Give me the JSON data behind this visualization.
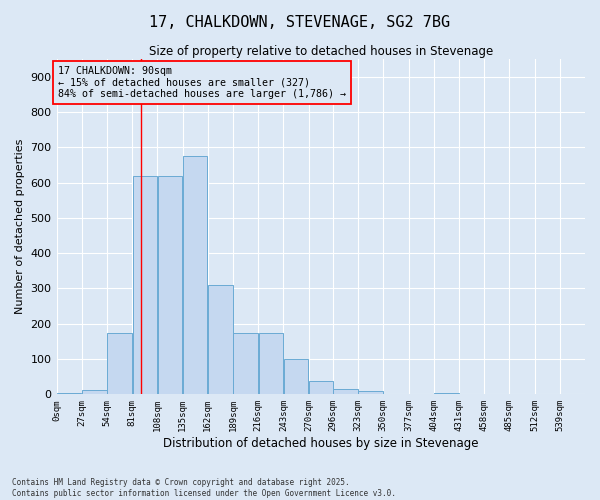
{
  "title_line1": "17, CHALKDOWN, STEVENAGE, SG2 7BG",
  "title_line2": "Size of property relative to detached houses in Stevenage",
  "xlabel": "Distribution of detached houses by size in Stevenage",
  "ylabel": "Number of detached properties",
  "bar_values": [
    5,
    12,
    175,
    620,
    620,
    675,
    310,
    175,
    175,
    100,
    38,
    15,
    10,
    0,
    0,
    5,
    0,
    0,
    0,
    0
  ],
  "bin_labels": [
    "0sqm",
    "27sqm",
    "54sqm",
    "81sqm",
    "108sqm",
    "135sqm",
    "162sqm",
    "189sqm",
    "216sqm",
    "243sqm",
    "270sqm",
    "296sqm",
    "323sqm",
    "350sqm",
    "377sqm",
    "404sqm",
    "431sqm",
    "458sqm",
    "485sqm",
    "512sqm",
    "539sqm"
  ],
  "bin_edges": [
    0,
    27,
    54,
    81,
    108,
    135,
    162,
    189,
    216,
    243,
    270,
    296,
    323,
    350,
    377,
    404,
    431,
    458,
    485,
    512,
    539
  ],
  "bar_color": "#c5d8f0",
  "bar_edge_color": "#6aaad4",
  "bar_edge_width": 0.7,
  "vline_x": 90,
  "vline_color": "red",
  "annotation_text": "17 CHALKDOWN: 90sqm\n← 15% of detached houses are smaller (327)\n84% of semi-detached houses are larger (1,786) →",
  "ylim": [
    0,
    950
  ],
  "yticks": [
    0,
    100,
    200,
    300,
    400,
    500,
    600,
    700,
    800,
    900
  ],
  "background_color": "#dce8f5",
  "grid_color": "#ffffff",
  "footnote": "Contains HM Land Registry data © Crown copyright and database right 2025.\nContains public sector information licensed under the Open Government Licence v3.0."
}
